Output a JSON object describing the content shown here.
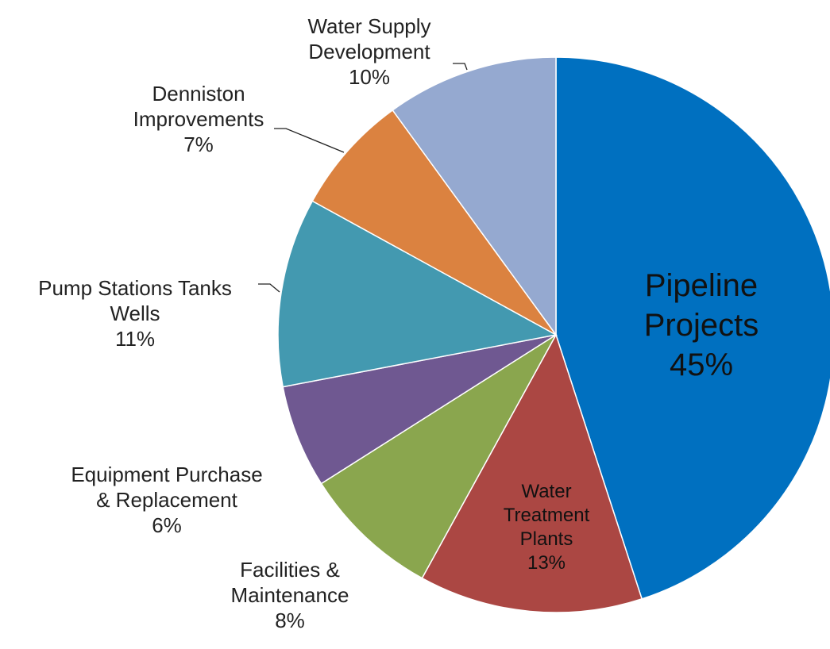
{
  "chart_data": {
    "type": "pie",
    "categories": [
      "Pipeline Projects",
      "Water Treatment Plants",
      "Facilities & Maintenance",
      "Equipment Purchase & Replacement",
      "Pump Stations Tanks Wells",
      "Denniston Improvements",
      "Water Supply Development"
    ],
    "values": [
      45,
      13,
      8,
      6,
      11,
      7,
      10
    ],
    "value_labels": [
      "45%",
      "13%",
      "8%",
      "6%",
      "11%",
      "7%",
      "10%"
    ],
    "colors": [
      "#0070c0",
      "#ab4743",
      "#8aa64e",
      "#6f5891",
      "#4399b0",
      "#db8240",
      "#95a9d0"
    ]
  }
}
